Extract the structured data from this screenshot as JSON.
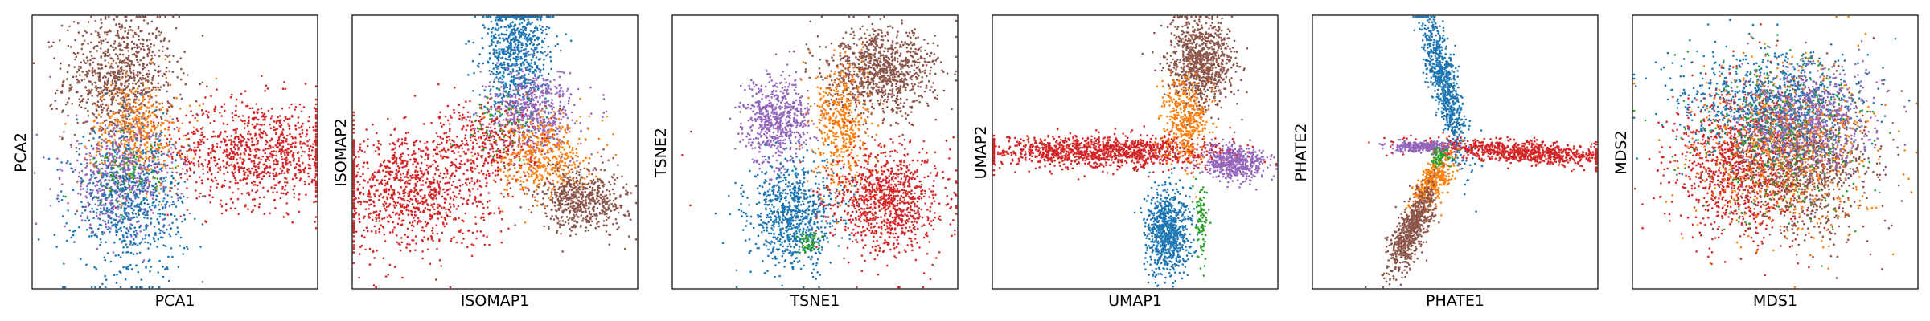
{
  "palette": {
    "blue": "#1f77b4",
    "orange": "#ff7f0e",
    "green": "#2ca02c",
    "red": "#d62728",
    "purple": "#9467bd",
    "brown": "#8c564b"
  },
  "chart_data": [
    {
      "type": "scatter",
      "xlabel": "PCA1",
      "ylabel": "PCA2",
      "ticks": "none",
      "grid": false,
      "clusters": [
        {
          "color": "brown",
          "x": -1.0,
          "y": 1.4,
          "sx": 0.5,
          "sy": 0.6,
          "n": 900
        },
        {
          "color": "red",
          "x": 1.5,
          "y": 0.0,
          "sx": 0.8,
          "sy": 0.5,
          "n": 1000
        },
        {
          "color": "orange",
          "x": -0.7,
          "y": 0.3,
          "sx": 0.4,
          "sy": 0.5,
          "n": 500
        },
        {
          "color": "purple",
          "x": -1.0,
          "y": -0.5,
          "sx": 0.5,
          "sy": 0.5,
          "n": 550
        },
        {
          "color": "blue",
          "x": -0.8,
          "y": -1.0,
          "sx": 0.5,
          "sy": 0.7,
          "n": 700
        },
        {
          "color": "green",
          "x": -0.9,
          "y": -0.4,
          "sx": 0.3,
          "sy": 0.3,
          "n": 80
        }
      ]
    },
    {
      "type": "scatter",
      "xlabel": "ISOMAP1",
      "ylabel": "ISOMAP2",
      "ticks": "none",
      "grid": false,
      "clusters": [
        {
          "color": "blue",
          "x": 0.4,
          "y": 1.9,
          "sx": 0.3,
          "sy": 0.6,
          "n": 800
        },
        {
          "color": "red",
          "x": -1.6,
          "y": -0.7,
          "sx": 0.8,
          "sy": 0.6,
          "n": 1100
        },
        {
          "color": "red",
          "x": 0.0,
          "y": 0.2,
          "sx": 0.5,
          "sy": 0.4,
          "n": 400
        },
        {
          "color": "purple",
          "x": 0.7,
          "y": 0.8,
          "sx": 0.4,
          "sy": 0.4,
          "n": 500
        },
        {
          "color": "orange",
          "x": 0.9,
          "y": -0.1,
          "sx": 0.4,
          "sy": 0.4,
          "n": 450
        },
        {
          "color": "brown",
          "x": 1.6,
          "y": -0.9,
          "sx": 0.4,
          "sy": 0.3,
          "n": 600
        },
        {
          "color": "green",
          "x": 0.2,
          "y": 0.6,
          "sx": 0.3,
          "sy": 0.3,
          "n": 60
        }
      ]
    },
    {
      "type": "scatter",
      "xlabel": "TSNE1",
      "ylabel": "TSNE2",
      "ticks": "none",
      "grid": false,
      "clusters": [
        {
          "color": "brown",
          "x": 1.2,
          "y": 1.5,
          "sx": 0.5,
          "sy": 0.4,
          "n": 1000
        },
        {
          "color": "purple",
          "x": -0.7,
          "y": 0.6,
          "sx": 0.3,
          "sy": 0.4,
          "n": 600
        },
        {
          "color": "orange",
          "x": 0.5,
          "y": 0.5,
          "sx": 0.25,
          "sy": 0.6,
          "n": 450
        },
        {
          "color": "red",
          "x": 1.3,
          "y": -0.9,
          "sx": 0.5,
          "sy": 0.5,
          "n": 1000
        },
        {
          "color": "blue",
          "x": -0.4,
          "y": -1.2,
          "sx": 0.4,
          "sy": 0.5,
          "n": 800
        },
        {
          "color": "green",
          "x": -0.1,
          "y": -1.7,
          "sx": 0.1,
          "sy": 0.1,
          "n": 60
        },
        {
          "color": "red",
          "x": -2.3,
          "y": 0.0,
          "sx": 0.05,
          "sy": 0.6,
          "n": 3
        }
      ]
    },
    {
      "type": "scatter",
      "xlabel": "UMAP1",
      "ylabel": "UMAP2",
      "ticks": "none",
      "grid": false,
      "clusters": [
        {
          "color": "red",
          "x": -0.6,
          "y": 0.0,
          "sx": 1.1,
          "sy": 0.15,
          "n": 1300
        },
        {
          "color": "purple",
          "x": 1.8,
          "y": -0.2,
          "sx": 0.3,
          "sy": 0.17,
          "n": 500
        },
        {
          "color": "brown",
          "x": 1.2,
          "y": 1.7,
          "sx": 0.3,
          "sy": 0.4,
          "n": 900
        },
        {
          "color": "orange",
          "x": 0.9,
          "y": 0.6,
          "sx": 0.2,
          "sy": 0.4,
          "n": 400
        },
        {
          "color": "blue",
          "x": 0.6,
          "y": -1.5,
          "sx": 0.2,
          "sy": 0.4,
          "n": 800
        },
        {
          "color": "green",
          "x": 1.2,
          "y": -1.3,
          "sx": 0.06,
          "sy": 0.35,
          "n": 100
        }
      ]
    },
    {
      "type": "scatter",
      "xlabel": "PHATE1",
      "ylabel": "PHATE2",
      "ticks": "none",
      "grid": false,
      "clusters": [
        {
          "color": "blue",
          "x": -0.2,
          "y": 1.3,
          "sx": 0.2,
          "sy": 0.7,
          "rho": -0.8,
          "n": 800
        },
        {
          "color": "red",
          "x": 1.2,
          "y": 0.0,
          "sx": 0.9,
          "sy": 0.12,
          "rho": -0.5,
          "n": 900
        },
        {
          "color": "purple",
          "x": -0.6,
          "y": 0.1,
          "sx": 0.25,
          "sy": 0.05,
          "n": 300
        },
        {
          "color": "orange",
          "x": -0.4,
          "y": -0.6,
          "sx": 0.2,
          "sy": 0.3,
          "rho": 0.7,
          "n": 400
        },
        {
          "color": "brown",
          "x": -0.8,
          "y": -1.5,
          "sx": 0.2,
          "sy": 0.4,
          "rho": 0.7,
          "n": 700
        },
        {
          "color": "green",
          "x": -0.3,
          "y": -0.1,
          "sx": 0.1,
          "sy": 0.1,
          "n": 60
        }
      ]
    },
    {
      "type": "scatter",
      "xlabel": "MDS1",
      "ylabel": "MDS2",
      "ticks": "none",
      "grid": false,
      "clusters": [
        {
          "color": "red",
          "x": -0.6,
          "y": -0.2,
          "sx": 0.6,
          "sy": 0.7,
          "n": 1200
        },
        {
          "color": "brown",
          "x": 0.6,
          "y": -0.2,
          "sx": 0.6,
          "sy": 0.7,
          "n": 1000
        },
        {
          "color": "blue",
          "x": -0.1,
          "y": 0.9,
          "sx": 0.8,
          "sy": 0.5,
          "n": 900
        },
        {
          "color": "purple",
          "x": 0.6,
          "y": 0.6,
          "sx": 0.6,
          "sy": 0.5,
          "n": 700
        },
        {
          "color": "orange",
          "x": 0.2,
          "y": 0.0,
          "sx": 0.8,
          "sy": 0.8,
          "n": 600
        },
        {
          "color": "green",
          "x": 0.0,
          "y": 0.2,
          "sx": 0.8,
          "sy": 0.8,
          "n": 300
        }
      ]
    }
  ]
}
